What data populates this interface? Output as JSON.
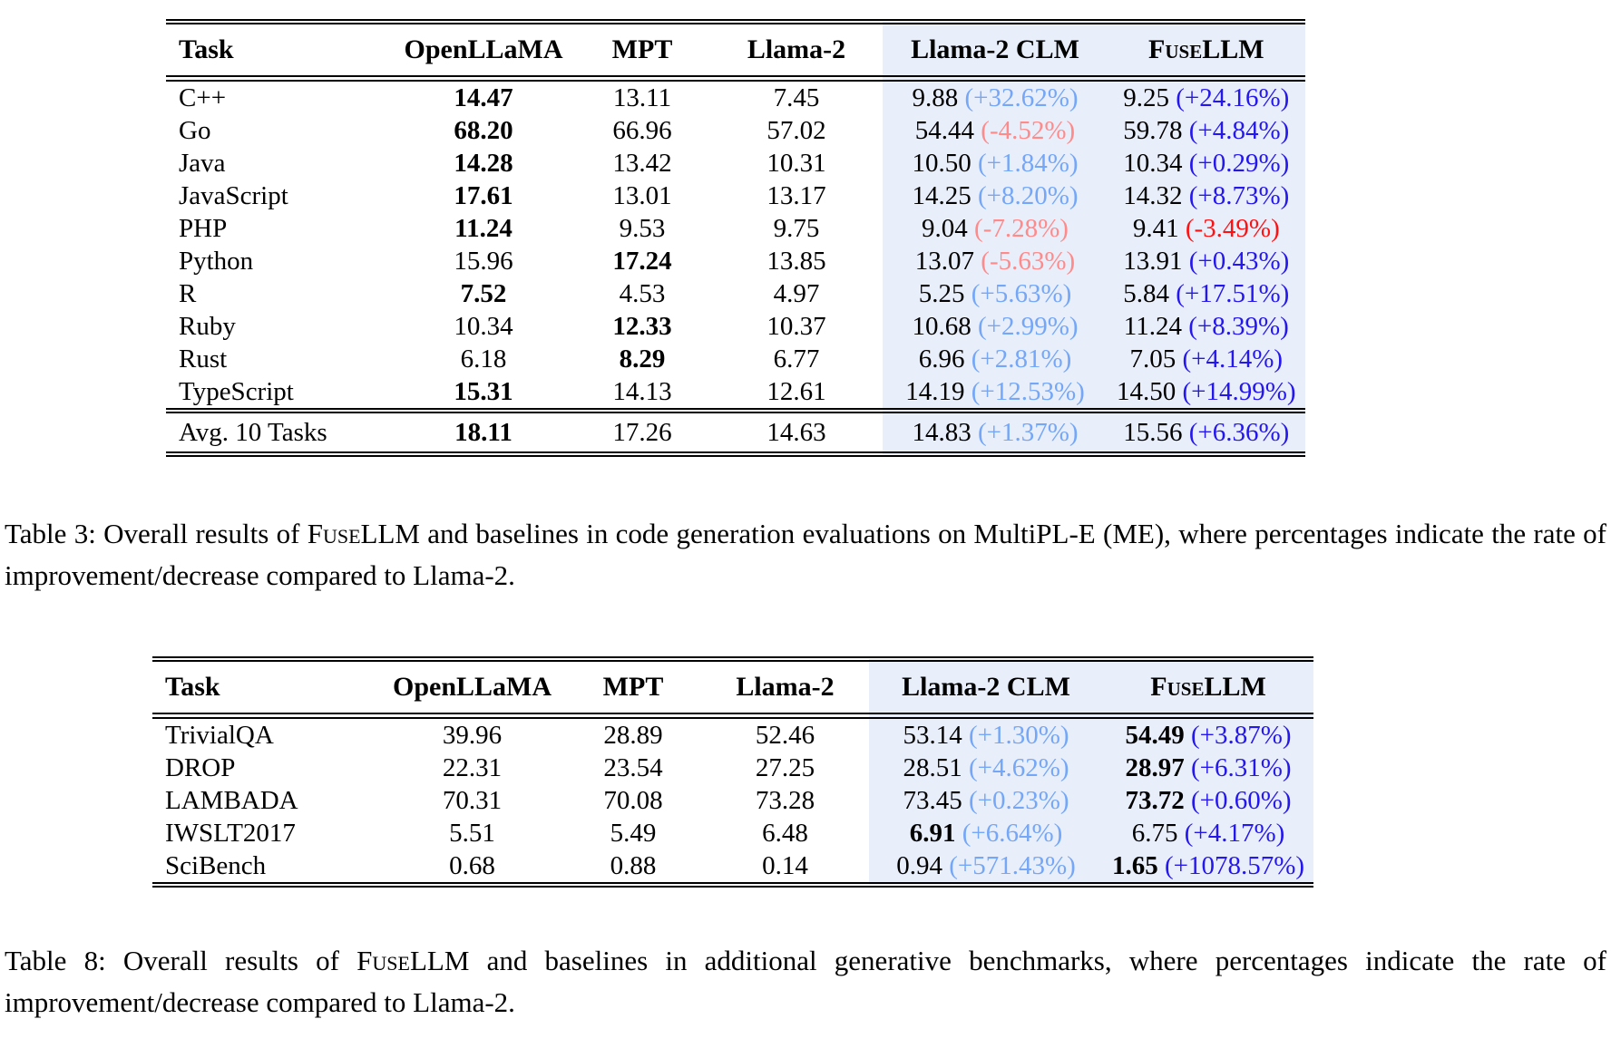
{
  "colors": {
    "highlight_bg": "#e9eefb",
    "clm_pos": "#74a7f7",
    "clm_neg": "#ff8a8a",
    "fuse_pos": "#2417ee",
    "fuse_neg": "#ff1111"
  },
  "columns": [
    "Task",
    "OpenLLaMA",
    "MPT",
    "Llama-2",
    "Llama-2 CLM",
    "FuseLLM"
  ],
  "table3": {
    "rows": [
      {
        "task": "C++",
        "cells": [
          {
            "t": "14.47",
            "b": true
          },
          {
            "t": "13.11"
          },
          {
            "t": "7.45"
          },
          {
            "t": "9.88",
            "p": "(+32.62%)",
            "pc": "clm_pos"
          },
          {
            "t": "9.25",
            "p": "(+24.16%)",
            "pc": "fuse_pos"
          }
        ]
      },
      {
        "task": "Go",
        "cells": [
          {
            "t": "68.20",
            "b": true
          },
          {
            "t": "66.96"
          },
          {
            "t": "57.02"
          },
          {
            "t": "54.44",
            "p": "(-4.52%)",
            "pc": "clm_neg"
          },
          {
            "t": "59.78",
            "p": "(+4.84%)",
            "pc": "fuse_pos"
          }
        ]
      },
      {
        "task": "Java",
        "cells": [
          {
            "t": "14.28",
            "b": true
          },
          {
            "t": "13.42"
          },
          {
            "t": "10.31"
          },
          {
            "t": "10.50",
            "p": "(+1.84%)",
            "pc": "clm_pos"
          },
          {
            "t": "10.34",
            "p": "(+0.29%)",
            "pc": "fuse_pos"
          }
        ]
      },
      {
        "task": "JavaScript",
        "cells": [
          {
            "t": "17.61",
            "b": true
          },
          {
            "t": "13.01"
          },
          {
            "t": "13.17"
          },
          {
            "t": "14.25",
            "p": "(+8.20%)",
            "pc": "clm_pos"
          },
          {
            "t": "14.32",
            "p": "(+8.73%)",
            "pc": "fuse_pos"
          }
        ]
      },
      {
        "task": "PHP",
        "cells": [
          {
            "t": "11.24",
            "b": true
          },
          {
            "t": "9.53"
          },
          {
            "t": "9.75"
          },
          {
            "t": "9.04",
            "p": "(-7.28%)",
            "pc": "clm_neg"
          },
          {
            "t": "9.41",
            "p": "(-3.49%)",
            "pc": "fuse_neg"
          }
        ]
      },
      {
        "task": "Python",
        "cells": [
          {
            "t": "15.96"
          },
          {
            "t": "17.24",
            "b": true
          },
          {
            "t": "13.85"
          },
          {
            "t": "13.07",
            "p": "(-5.63%)",
            "pc": "clm_neg"
          },
          {
            "t": "13.91",
            "p": "(+0.43%)",
            "pc": "fuse_pos"
          }
        ]
      },
      {
        "task": "R",
        "cells": [
          {
            "t": "7.52",
            "b": true
          },
          {
            "t": "4.53"
          },
          {
            "t": "4.97"
          },
          {
            "t": "5.25",
            "p": "(+5.63%)",
            "pc": "clm_pos"
          },
          {
            "t": "5.84",
            "p": "(+17.51%)",
            "pc": "fuse_pos"
          }
        ]
      },
      {
        "task": "Ruby",
        "cells": [
          {
            "t": "10.34"
          },
          {
            "t": "12.33",
            "b": true
          },
          {
            "t": "10.37"
          },
          {
            "t": "10.68",
            "p": "(+2.99%)",
            "pc": "clm_pos"
          },
          {
            "t": "11.24",
            "p": "(+8.39%)",
            "pc": "fuse_pos"
          }
        ]
      },
      {
        "task": "Rust",
        "cells": [
          {
            "t": "6.18"
          },
          {
            "t": "8.29",
            "b": true
          },
          {
            "t": "6.77"
          },
          {
            "t": "6.96",
            "p": "(+2.81%)",
            "pc": "clm_pos"
          },
          {
            "t": "7.05",
            "p": "(+4.14%)",
            "pc": "fuse_pos"
          }
        ]
      },
      {
        "task": "TypeScript",
        "cells": [
          {
            "t": "15.31",
            "b": true
          },
          {
            "t": "14.13"
          },
          {
            "t": "12.61"
          },
          {
            "t": "14.19",
            "p": "(+12.53%)",
            "pc": "clm_pos"
          },
          {
            "t": "14.50",
            "p": "(+14.99%)",
            "pc": "fuse_pos"
          }
        ]
      }
    ],
    "avg_rows": [
      {
        "task": "Avg. 10 Tasks",
        "cells": [
          {
            "t": "18.11",
            "b": true
          },
          {
            "t": "17.26"
          },
          {
            "t": "14.63"
          },
          {
            "t": "14.83",
            "p": "(+1.37%)",
            "pc": "clm_pos"
          },
          {
            "t": "15.56",
            "p": "(+6.36%)",
            "pc": "fuse_pos"
          }
        ]
      }
    ],
    "caption": {
      "before": "Table 3: Overall results of ",
      "brand": "FuseLLM",
      "after": " and baselines in code generation evaluations on MultiPL-E (ME), where percentages indicate the rate of improvement/decrease compared to Llama-2."
    }
  },
  "table8": {
    "rows": [
      {
        "task": "TrivialQA",
        "cells": [
          {
            "t": "39.96"
          },
          {
            "t": "28.89"
          },
          {
            "t": "52.46"
          },
          {
            "t": "53.14",
            "p": "(+1.30%)",
            "pc": "clm_pos"
          },
          {
            "t": "54.49",
            "b": true,
            "p": "(+3.87%)",
            "pc": "fuse_pos"
          }
        ]
      },
      {
        "task": "DROP",
        "cells": [
          {
            "t": "22.31"
          },
          {
            "t": "23.54"
          },
          {
            "t": "27.25"
          },
          {
            "t": "28.51",
            "p": "(+4.62%)",
            "pc": "clm_pos"
          },
          {
            "t": "28.97",
            "b": true,
            "p": "(+6.31%)",
            "pc": "fuse_pos"
          }
        ]
      },
      {
        "task": "LAMBADA",
        "cells": [
          {
            "t": "70.31"
          },
          {
            "t": "70.08"
          },
          {
            "t": "73.28"
          },
          {
            "t": "73.45",
            "p": "(+0.23%)",
            "pc": "clm_pos"
          },
          {
            "t": "73.72",
            "b": true,
            "p": "(+0.60%)",
            "pc": "fuse_pos"
          }
        ]
      },
      {
        "task": "IWSLT2017",
        "cells": [
          {
            "t": "5.51"
          },
          {
            "t": "5.49"
          },
          {
            "t": "6.48"
          },
          {
            "t": "6.91",
            "b": true,
            "p": "(+6.64%)",
            "pc": "clm_pos"
          },
          {
            "t": "6.75",
            "p": "(+4.17%)",
            "pc": "fuse_pos"
          }
        ]
      },
      {
        "task": "SciBench",
        "cells": [
          {
            "t": "0.68"
          },
          {
            "t": "0.88"
          },
          {
            "t": "0.14"
          },
          {
            "t": "0.94",
            "p": "(+571.43%)",
            "pc": "clm_pos"
          },
          {
            "t": "1.65",
            "b": true,
            "p": "(+1078.57%)",
            "pc": "fuse_pos"
          }
        ]
      }
    ],
    "caption": {
      "before": "Table 8: Overall results of ",
      "brand": "FuseLLM",
      "after": " and baselines in additional generative benchmarks, where percentages indicate the rate of improvement/decrease compared to Llama-2."
    }
  }
}
